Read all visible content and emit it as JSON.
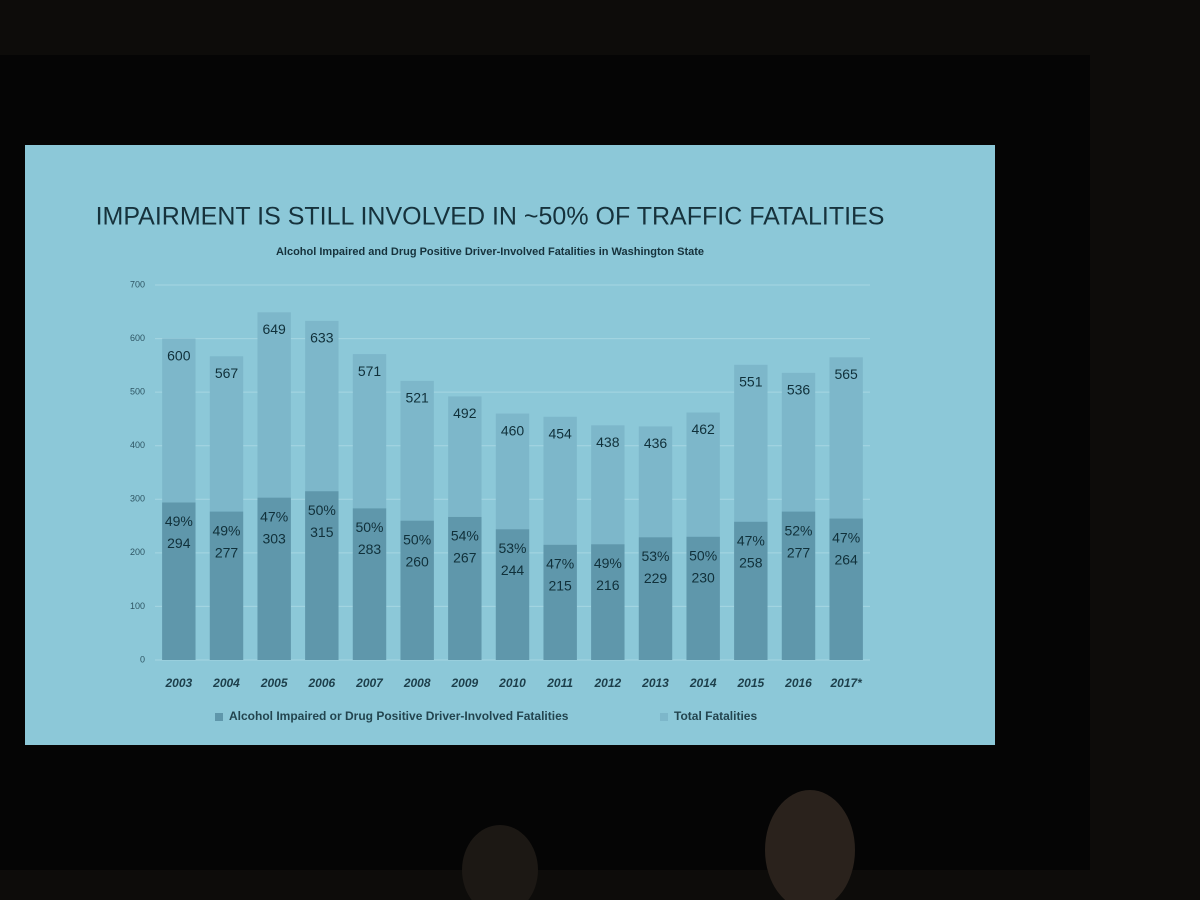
{
  "chart_data": {
    "type": "bar",
    "overlap": true,
    "title": "IMPAIRMENT IS STILL INVOLVED IN ~50% OF TRAFFIC FATALITIES",
    "subtitle": "Alcohol Impaired and Drug Positive Driver-Involved Fatalities in Washington State",
    "categories": [
      "2003",
      "2004",
      "2005",
      "2006",
      "2007",
      "2008",
      "2009",
      "2010",
      "2011",
      "2012",
      "2013",
      "2014",
      "2015",
      "2016",
      "2017*"
    ],
    "series": [
      {
        "name": "Total Fatalities",
        "color": "#7db7ca",
        "values": [
          600,
          567,
          649,
          633,
          571,
          521,
          492,
          460,
          454,
          438,
          436,
          462,
          551,
          536,
          565
        ]
      },
      {
        "name": "Alcohol Impaired or Drug Positive Driver-Involved Fatalities",
        "color": "#5f97ab",
        "values": [
          294,
          277,
          303,
          315,
          283,
          260,
          267,
          244,
          215,
          216,
          229,
          230,
          258,
          277,
          264
        ]
      }
    ],
    "share_labels": [
      "49%",
      "49%",
      "47%",
      "50%",
      "50%",
      "50%",
      "54%",
      "53%",
      "47%",
      "49%",
      "53%",
      "50%",
      "47%",
      "52%",
      "47%"
    ],
    "ylim": [
      0,
      700
    ],
    "yticks": [
      0,
      100,
      200,
      300,
      400,
      500,
      600,
      700
    ],
    "grid": true,
    "legend": "bottom"
  }
}
